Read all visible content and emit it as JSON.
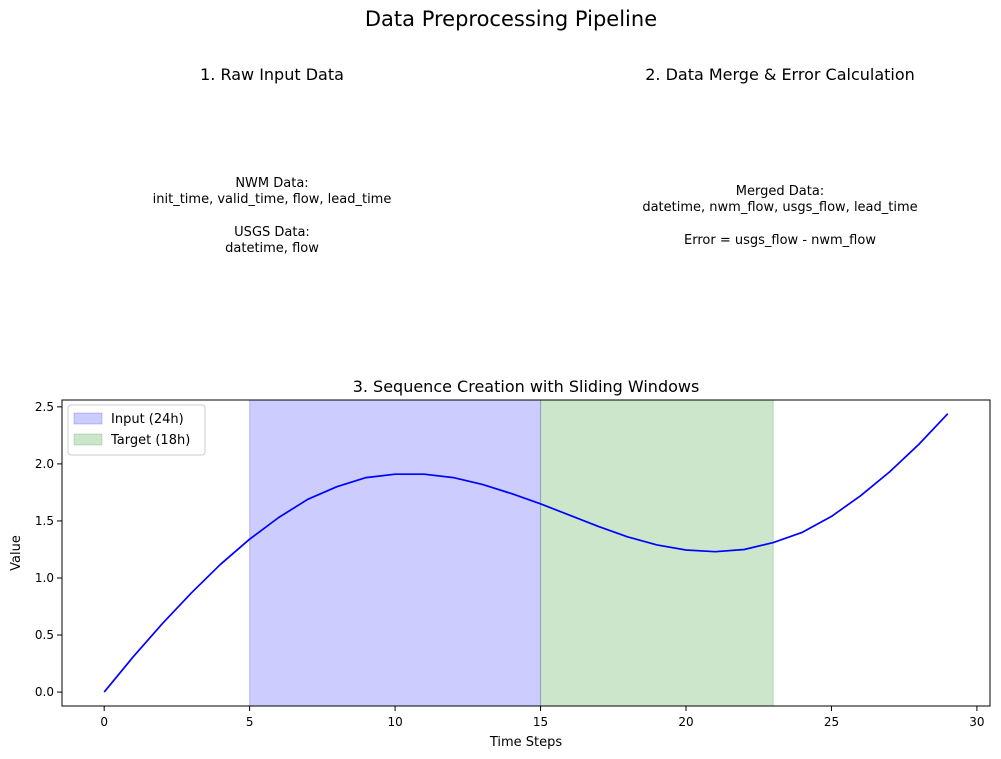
{
  "figure": {
    "suptitle": "Data Preprocessing Pipeline"
  },
  "panel1": {
    "title": "1. Raw Input Data",
    "lines": [
      "NWM Data:",
      "init_time, valid_time, flow, lead_time",
      "",
      "USGS Data:",
      "datetime, flow"
    ]
  },
  "panel2": {
    "title": "2. Data Merge & Error Calculation",
    "lines": [
      "Merged Data:",
      "datetime, nwm_flow, usgs_flow, lead_time",
      "",
      "Error = usgs_flow - nwm_flow"
    ]
  },
  "chart_data": {
    "type": "line",
    "title": "3. Sequence Creation with Sliding Windows",
    "xlabel": "Time Steps",
    "ylabel": "Value",
    "xlim": [
      -1.45,
      30.45
    ],
    "ylim": [
      -0.122,
      2.56
    ],
    "xticks": [
      0,
      5,
      10,
      15,
      20,
      25,
      30
    ],
    "yticks": [
      0.0,
      0.5,
      1.0,
      1.5,
      2.0,
      2.5
    ],
    "ytick_labels": [
      "0.0",
      "0.5",
      "1.0",
      "1.5",
      "2.0",
      "2.5"
    ],
    "grid": false,
    "legend_position": "upper left",
    "x": [
      0,
      1,
      2,
      3,
      4,
      5,
      6,
      7,
      8,
      9,
      10,
      11,
      12,
      13,
      14,
      15,
      16,
      17,
      18,
      19,
      20,
      21,
      22,
      23,
      24,
      25,
      26,
      27,
      28,
      29
    ],
    "series": [
      {
        "values": [
          0.0,
          0.31,
          0.6,
          0.87,
          1.12,
          1.34,
          1.53,
          1.69,
          1.8,
          1.88,
          1.91,
          1.91,
          1.88,
          1.82,
          1.74,
          1.65,
          1.55,
          1.45,
          1.36,
          1.29,
          1.245,
          1.23,
          1.25,
          1.31,
          1.4,
          1.54,
          1.72,
          1.93,
          2.17,
          2.44
        ],
        "color": "#0000ff"
      }
    ],
    "spans": [
      {
        "name": "Input (24h)",
        "x_start": 5,
        "x_end": 15,
        "color": "#0000ff",
        "alpha": 0.2
      },
      {
        "name": "Target (18h)",
        "x_start": 15,
        "x_end": 23,
        "color": "#008000",
        "alpha": 0.2
      }
    ]
  }
}
